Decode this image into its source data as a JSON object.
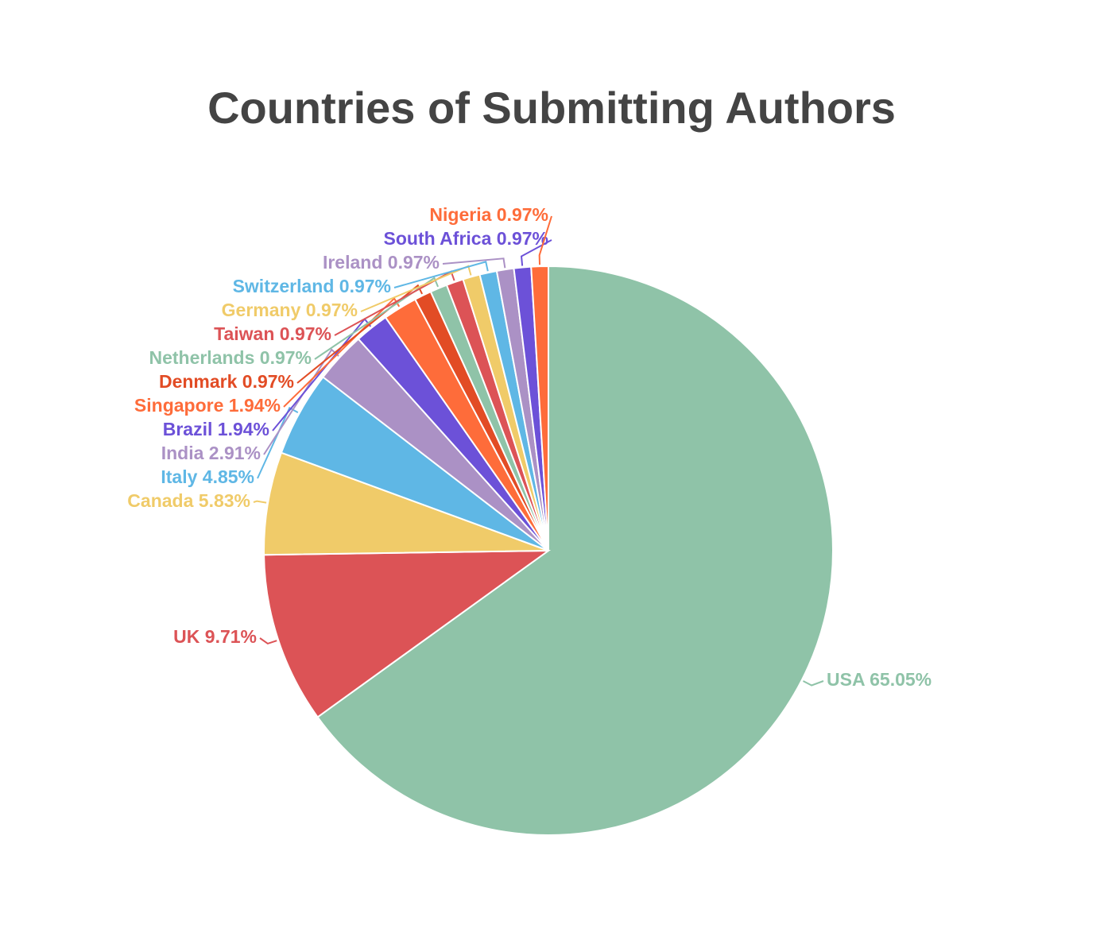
{
  "chart_data": {
    "type": "pie",
    "title": "Countries of Submitting Authors",
    "categories": [
      "USA",
      "UK",
      "Canada",
      "Italy",
      "India",
      "Brazil",
      "Singapore",
      "Denmark",
      "Netherlands",
      "Taiwan",
      "Germany",
      "Switzerland",
      "Ireland",
      "South Africa",
      "Nigeria"
    ],
    "values": [
      65.05,
      9.71,
      5.83,
      4.85,
      2.91,
      1.94,
      1.94,
      0.97,
      0.97,
      0.97,
      0.97,
      0.97,
      0.97,
      0.97,
      0.97
    ],
    "value_labels": [
      "65.05%",
      "9.71%",
      "5.83%",
      "4.85%",
      "2.91%",
      "1.94%",
      "1.94%",
      "0.97%",
      "0.97%",
      "0.97%",
      "0.97%",
      "0.97%",
      "0.97%",
      "0.97%",
      "0.97%"
    ],
    "colors": [
      "#8fc3a8",
      "#dc5356",
      "#f0cb69",
      "#5fb7e5",
      "#ab91c5",
      "#6c51d8",
      "#fe6c3a",
      "#e24c25",
      "#8fc3a8",
      "#dc5356",
      "#f0cb69",
      "#5fb7e5",
      "#ab91c5",
      "#6c51d8",
      "#fe6c3a"
    ]
  }
}
